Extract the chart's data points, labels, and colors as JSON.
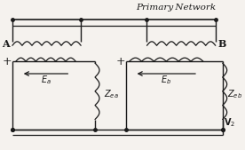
{
  "title": "Primary Network",
  "bg_color": "#f5f2ee",
  "line_color": "#1a1a1a",
  "fig_width": 2.76,
  "fig_height": 1.69,
  "dpi": 100,
  "label_A": "A",
  "label_B": "B",
  "label_Ea": "$E_a$",
  "label_Eb": "$E_b$",
  "label_Zea": "$Z_{ea}$",
  "label_Zeb": "$Z_{eb}$",
  "label_V2": "$\\mathbf{V}_2$",
  "label_plus_left": "+",
  "label_plus_right": "+"
}
